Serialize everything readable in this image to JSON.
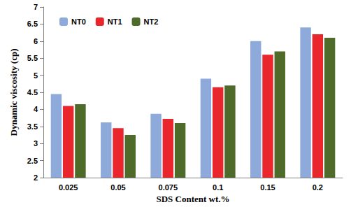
{
  "chart_data": {
    "type": "bar",
    "x_label": "SDS Content wt.%",
    "y_label": "Dynamic viscosity (cp)",
    "categories": [
      "0.025",
      "0.05",
      "0.075",
      "0.1",
      "0.15",
      "0.2"
    ],
    "series": [
      {
        "name": "NT0",
        "color": "#8eaadb",
        "values": [
          4.45,
          3.62,
          3.87,
          4.9,
          6.0,
          6.4
        ]
      },
      {
        "name": "NT1",
        "color": "#e8262b",
        "values": [
          4.1,
          3.45,
          3.72,
          4.65,
          5.6,
          6.2
        ]
      },
      {
        "name": "NT2",
        "color": "#4f6b2a",
        "values": [
          4.15,
          3.25,
          3.6,
          4.7,
          5.7,
          6.1
        ]
      }
    ],
    "ylim": [
      2,
      7
    ],
    "yticks": [
      2,
      2.5,
      3,
      3.5,
      4,
      4.5,
      5,
      5.5,
      6,
      6.5,
      7
    ],
    "grid": false,
    "legend": "upper left"
  }
}
